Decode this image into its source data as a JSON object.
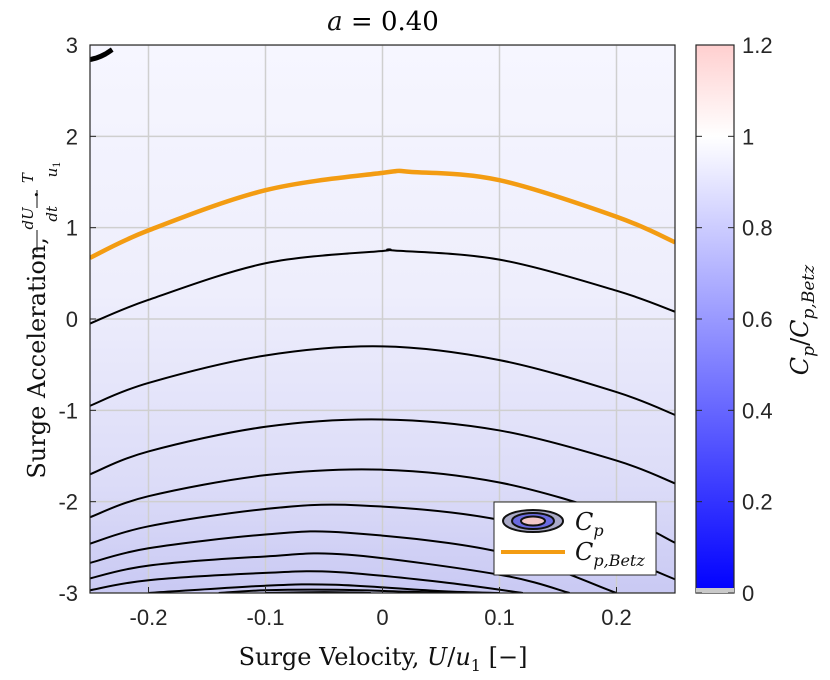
{
  "chart_data": {
    "type": "contour",
    "title": "a = 0.40",
    "xlabel": "Surge Velocity, U/u₁ [−]",
    "ylabel": "Surge Acceleration, (dU/dt)·(T/u₁)",
    "xlim": [
      -0.25,
      0.25
    ],
    "ylim": [
      -3,
      3
    ],
    "x_ticks": [
      "-0.2",
      "-0.1",
      "0",
      "0.1",
      "0.2"
    ],
    "y_ticks": [
      "-3",
      "-2",
      "-1",
      "0",
      "1",
      "2",
      "3"
    ],
    "grid": true,
    "colorbar": {
      "label": "Cp/Cp,Betz",
      "range": [
        0,
        1.2
      ],
      "ticks": [
        "0",
        "0.2",
        "0.4",
        "0.6",
        "0.8",
        "1",
        "1.2"
      ],
      "colors": {
        "low": "#0000ff",
        "mid": "#ffffff",
        "high": "#ff8080"
      }
    },
    "legend": {
      "placement": "bottom-right",
      "entries": [
        {
          "label": "Cp",
          "kind": "contour"
        },
        {
          "label": "Cp,Betz",
          "kind": "line",
          "color": "#f39c12"
        }
      ]
    },
    "contour_levels": [
      0.95,
      0.9,
      0.85,
      0.8,
      0.75,
      0.7,
      0.65,
      0.6,
      0.55,
      0.5,
      0.45
    ],
    "contour_lines": [
      {
        "name": "0.95",
        "x": [
          -0.25,
          -0.2,
          -0.1,
          0,
          0.01,
          0.1,
          0.2,
          0.25
        ],
        "y": [
          -0.05,
          0.21,
          0.61,
          0.745,
          0.75,
          0.65,
          0.31,
          0.08
        ]
      },
      {
        "name": "0.9",
        "x": [
          -0.25,
          -0.2,
          -0.1,
          0,
          0.1,
          0.2,
          0.25
        ],
        "y": [
          -0.95,
          -0.7,
          -0.4,
          -0.3,
          -0.45,
          -0.8,
          -1.05
        ]
      },
      {
        "name": "0.85",
        "x": [
          -0.25,
          -0.2,
          -0.1,
          0,
          0.1,
          0.2,
          0.25
        ],
        "y": [
          -1.7,
          -1.45,
          -1.18,
          -1.1,
          -1.22,
          -1.55,
          -1.8
        ]
      },
      {
        "name": "0.8",
        "x": [
          -0.25,
          -0.2,
          -0.1,
          0,
          0.1,
          0.2,
          0.25
        ],
        "y": [
          -2.17,
          -1.94,
          -1.71,
          -1.65,
          -1.79,
          -2.15,
          -2.45
        ]
      },
      {
        "name": "0.75",
        "x": [
          -0.25,
          -0.2,
          -0.1,
          -0.02,
          0.1,
          0.2,
          0.25
        ],
        "y": [
          -2.46,
          -2.27,
          -2.08,
          -2.04,
          -2.2,
          -2.6,
          -2.85
        ]
      },
      {
        "name": "0.7",
        "x": [
          -0.25,
          -0.2,
          -0.1,
          -0.03,
          0.1,
          0.2
        ],
        "y": [
          -2.67,
          -2.51,
          -2.36,
          -2.34,
          -2.55,
          -3.0
        ]
      },
      {
        "name": "0.65",
        "x": [
          -0.25,
          -0.2,
          -0.1,
          -0.03,
          0.1,
          0.16
        ],
        "y": [
          -2.84,
          -2.7,
          -2.6,
          -2.58,
          -2.8,
          -3.0
        ]
      },
      {
        "name": "0.6",
        "x": [
          -0.25,
          -0.2,
          -0.1,
          -0.04,
          0.05,
          0.12
        ],
        "y": [
          -2.97,
          -2.86,
          -2.78,
          -2.77,
          -2.88,
          -3.0
        ]
      },
      {
        "name": "0.55",
        "x": [
          -0.2,
          -0.1,
          -0.04,
          0.05,
          0.1
        ],
        "y": [
          -3.0,
          -2.92,
          -2.91,
          -2.98,
          -3.0
        ]
      },
      {
        "name": "0.5",
        "x": [
          -0.14,
          -0.1,
          -0.04,
          0.02,
          0.06
        ],
        "y": [
          -3.0,
          -2.97,
          -2.965,
          -2.985,
          -3.0
        ]
      },
      {
        "name": "0.45",
        "x": [
          -0.1,
          -0.05,
          -0.01
        ],
        "y": [
          -3.0,
          -2.99,
          -3.0
        ]
      },
      {
        "name": "corner",
        "x": [
          -0.25,
          -0.244,
          -0.237,
          -0.231
        ],
        "y": [
          2.84,
          2.86,
          2.9,
          2.95
        ]
      }
    ],
    "series": [
      {
        "name": "Cp,Betz",
        "color": "#f39c12",
        "x": [
          -0.25,
          -0.2,
          -0.1,
          0,
          0.025,
          0.1,
          0.2,
          0.25
        ],
        "y": [
          0.67,
          0.97,
          1.41,
          1.6,
          1.61,
          1.52,
          1.12,
          0.84
        ]
      }
    ]
  }
}
